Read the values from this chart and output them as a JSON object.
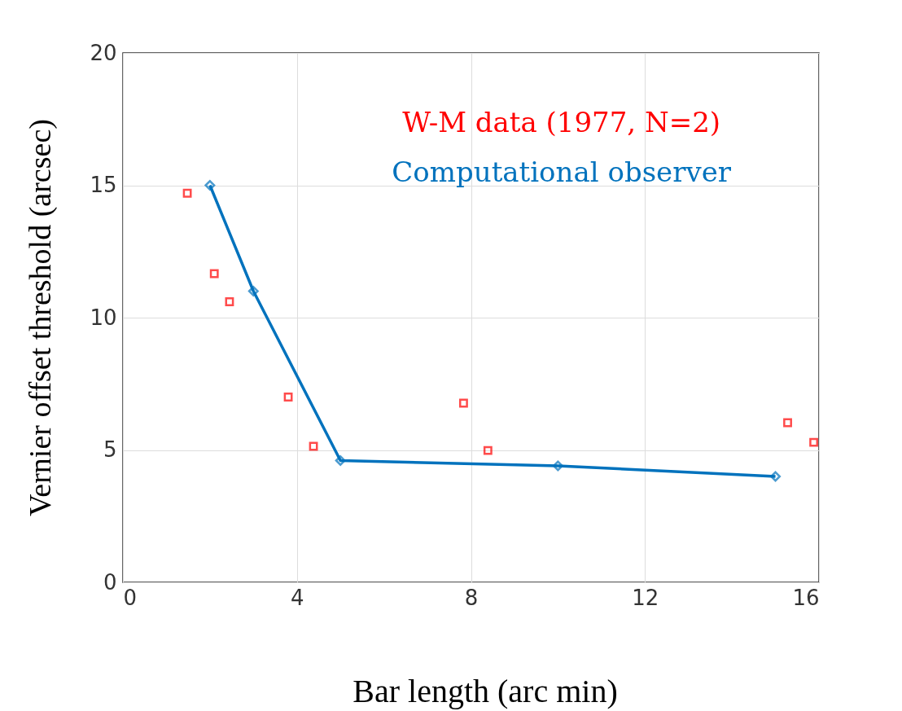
{
  "chart_data": {
    "type": "scatter",
    "xlabel": "Bar length (arc min)",
    "ylabel": "Vernier offset threshold (arcsec)",
    "xlim": [
      0,
      16
    ],
    "xticks": [
      0,
      4,
      8,
      12,
      16
    ],
    "ylim": [
      0,
      20
    ],
    "yticks": [
      0,
      5,
      10,
      15,
      20
    ],
    "grid": true,
    "legend": "top right",
    "series": [
      {
        "name": "W-M data (1977, N=2)",
        "marker": "square",
        "color": "#ff0000",
        "x": [
          1.48,
          2.1,
          2.45,
          3.8,
          4.38,
          7.83,
          8.39,
          15.28,
          15.88
        ],
        "values": [
          14.7,
          11.66,
          10.6,
          7.0,
          5.14,
          6.77,
          4.98,
          6.03,
          5.29
        ]
      },
      {
        "name": "Computational observer",
        "type": "line",
        "marker": "diamond",
        "color": "#0072bd",
        "x": [
          2,
          3,
          5,
          10,
          15
        ],
        "values": [
          15,
          11,
          4.6,
          4.4,
          4.0
        ]
      }
    ]
  }
}
